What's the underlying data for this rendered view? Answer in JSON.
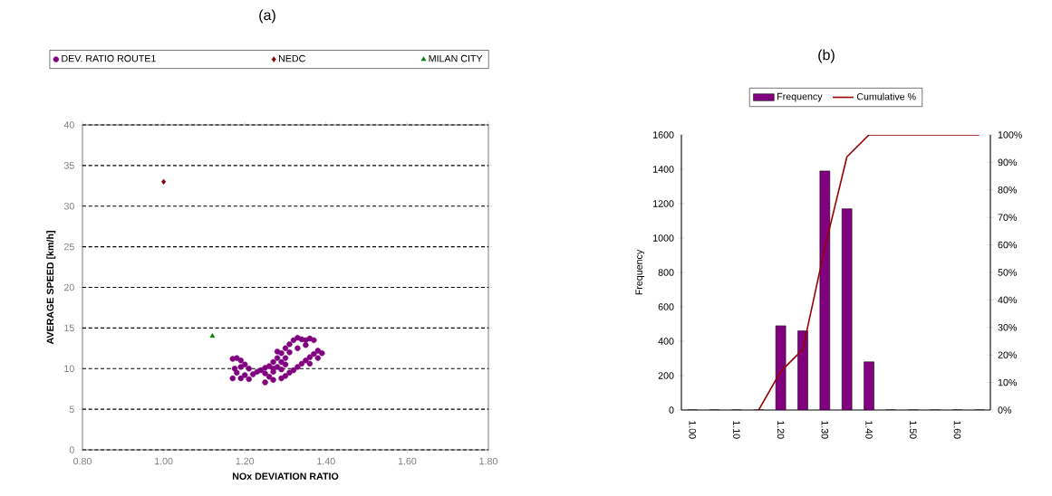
{
  "chart_data": [
    {
      "type": "scatter",
      "title": "(a)",
      "xlabel": "NOx DEVIATION RATIO",
      "ylabel": "AVERAGE SPEED [km/h]",
      "xlim": [
        0.8,
        1.8
      ],
      "ylim": [
        0,
        40
      ],
      "xticks": [
        {
          "value": 0.8,
          "label": "0.80"
        },
        {
          "value": 1.0,
          "label": "1.00"
        },
        {
          "value": 1.2,
          "label": "1.20"
        },
        {
          "value": 1.4,
          "label": "1.40"
        },
        {
          "value": 1.6,
          "label": "1.60"
        },
        {
          "value": 1.8,
          "label": "1.80"
        }
      ],
      "yticks": [
        0,
        5,
        10,
        15,
        20,
        25,
        30,
        35,
        40
      ],
      "grid": "y",
      "legend": "top",
      "series": [
        {
          "name": "DEV. RATIO ROUTE1",
          "color": "#800080",
          "marker": "circle",
          "x": [
            1.17,
            1.18,
            1.19,
            1.2,
            1.175,
            1.18,
            1.17,
            1.19,
            1.2,
            1.21,
            1.19,
            1.21,
            1.22,
            1.23,
            1.24,
            1.25,
            1.26,
            1.27,
            1.28,
            1.29,
            1.3,
            1.31,
            1.32,
            1.33,
            1.34,
            1.35,
            1.36,
            1.37,
            1.35,
            1.33,
            1.31,
            1.3,
            1.29,
            1.28,
            1.27,
            1.26,
            1.25,
            1.27,
            1.29,
            1.3,
            1.31,
            1.32,
            1.25,
            1.27,
            1.29,
            1.3,
            1.28,
            1.33,
            1.34,
            1.35,
            1.36,
            1.37,
            1.38,
            1.39,
            1.38,
            1.36
          ],
          "values": [
            11.2,
            11.3,
            11,
            10.5,
            10,
            9.5,
            8.8,
            8.8,
            9.2,
            8.7,
            10.2,
            10,
            9.3,
            9.6,
            9.8,
            10.1,
            10.3,
            10.8,
            11.3,
            11.9,
            12.5,
            13,
            13.5,
            13.8,
            13.6,
            13.5,
            13.7,
            13.5,
            12.9,
            12.5,
            12,
            11.3,
            10.8,
            10.2,
            9.6,
            9,
            8.3,
            8.6,
            8.8,
            9.1,
            9.5,
            9.8,
            9.4,
            10,
            9.9,
            10.5,
            12.1,
            10.2,
            10.6,
            11,
            11.4,
            11.8,
            12.2,
            11.9,
            11.3,
            10.6
          ]
        },
        {
          "name": "NEDC",
          "color": "#800000",
          "marker": "diamond",
          "x": [
            1.0
          ],
          "values": [
            33
          ]
        },
        {
          "name": "MILAN CITY",
          "color": "#008000",
          "marker": "triangle",
          "x": [
            1.12
          ],
          "values": [
            14
          ]
        }
      ]
    },
    {
      "type": "bar",
      "title": "(b)",
      "ylabel": "Frequency",
      "categories": [
        "1.00",
        null,
        "1.10",
        null,
        "1.20",
        null,
        "1.30",
        null,
        "1.40",
        null,
        "1.50",
        null,
        "1.60",
        null
      ],
      "ylim": [
        0,
        1600
      ],
      "yticks": [
        0,
        200,
        400,
        600,
        800,
        1000,
        1200,
        1400,
        1600
      ],
      "y2lim": [
        0,
        100
      ],
      "y2ticks": [
        {
          "value": 0,
          "label": "0%"
        },
        {
          "value": 10,
          "label": "10%"
        },
        {
          "value": 20,
          "label": "20%"
        },
        {
          "value": 30,
          "label": "30%"
        },
        {
          "value": 40,
          "label": "40%"
        },
        {
          "value": 50,
          "label": "50%"
        },
        {
          "value": 60,
          "label": "60%"
        },
        {
          "value": 70,
          "label": "70%"
        },
        {
          "value": 80,
          "label": "80%"
        },
        {
          "value": 90,
          "label": "90%"
        },
        {
          "value": 100,
          "label": "100%"
        }
      ],
      "legend": "top",
      "series": [
        {
          "name": "Frequency",
          "color": "#800080",
          "values": [
            0,
            0,
            0,
            0,
            490,
            460,
            1390,
            1170,
            280,
            0,
            0,
            0,
            0,
            0
          ]
        },
        {
          "name": "Cumulative %",
          "type": "line",
          "axis": "y2",
          "color": "#990000",
          "values": [
            null,
            null,
            null,
            0,
            14,
            22,
            59,
            92,
            100,
            100,
            100,
            100,
            100,
            100
          ]
        }
      ]
    }
  ]
}
